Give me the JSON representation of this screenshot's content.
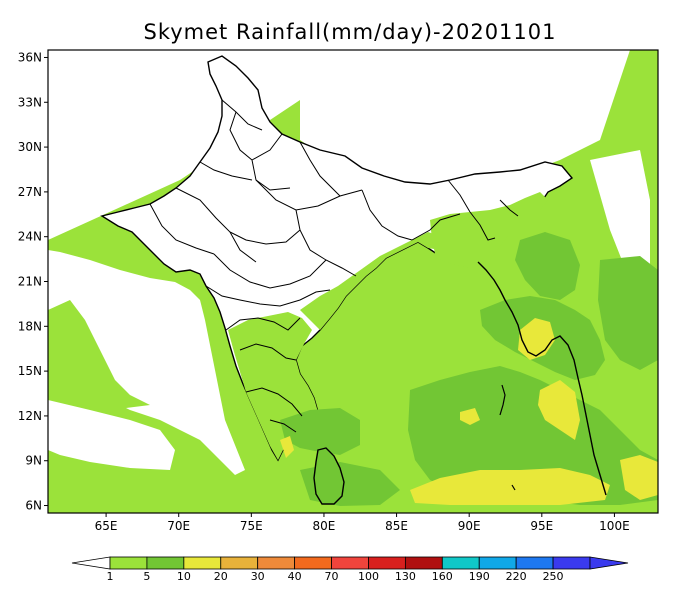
{
  "title": "Skymet Rainfall(mm/day)-20201101",
  "map": {
    "lat_ticks": [
      {
        "value": 36,
        "label": "36N"
      },
      {
        "value": 33,
        "label": "33N"
      },
      {
        "value": 30,
        "label": "30N"
      },
      {
        "value": 27,
        "label": "27N"
      },
      {
        "value": 24,
        "label": "24N"
      },
      {
        "value": 21,
        "label": "21N"
      },
      {
        "value": 18,
        "label": "18N"
      },
      {
        "value": 15,
        "label": "15N"
      },
      {
        "value": 12,
        "label": "12N"
      },
      {
        "value": 9,
        "label": "9N"
      },
      {
        "value": 6,
        "label": "6N"
      }
    ],
    "lon_ticks": [
      {
        "value": 65,
        "label": "65E"
      },
      {
        "value": 70,
        "label": "70E"
      },
      {
        "value": 75,
        "label": "75E"
      },
      {
        "value": 80,
        "label": "80E"
      },
      {
        "value": 85,
        "label": "85E"
      },
      {
        "value": 90,
        "label": "90E"
      },
      {
        "value": 95,
        "label": "95E"
      },
      {
        "value": 100,
        "label": "100E"
      }
    ],
    "lon_range": [
      61,
      103
    ],
    "lat_range": [
      5.5,
      36.5
    ]
  },
  "colorbar": {
    "labels": [
      "1",
      "5",
      "10",
      "20",
      "30",
      "40",
      "70",
      "100",
      "130",
      "160",
      "190",
      "220",
      "250"
    ],
    "colors": [
      "#9be23a",
      "#72c634",
      "#e8e83a",
      "#e8b23a",
      "#ee8a3a",
      "#f26a1e",
      "#f0443c",
      "#d8201e",
      "#b01010",
      "#10c8c8",
      "#10a8e8",
      "#1e78f0",
      "#3a3aee"
    ],
    "left_color": "#ffffff",
    "right_color": "#3a3aee"
  },
  "colors": {
    "light_green": "#9be23a",
    "mid_green": "#72c634",
    "yellow": "#e8e83a",
    "land_white": "#ffffff"
  }
}
